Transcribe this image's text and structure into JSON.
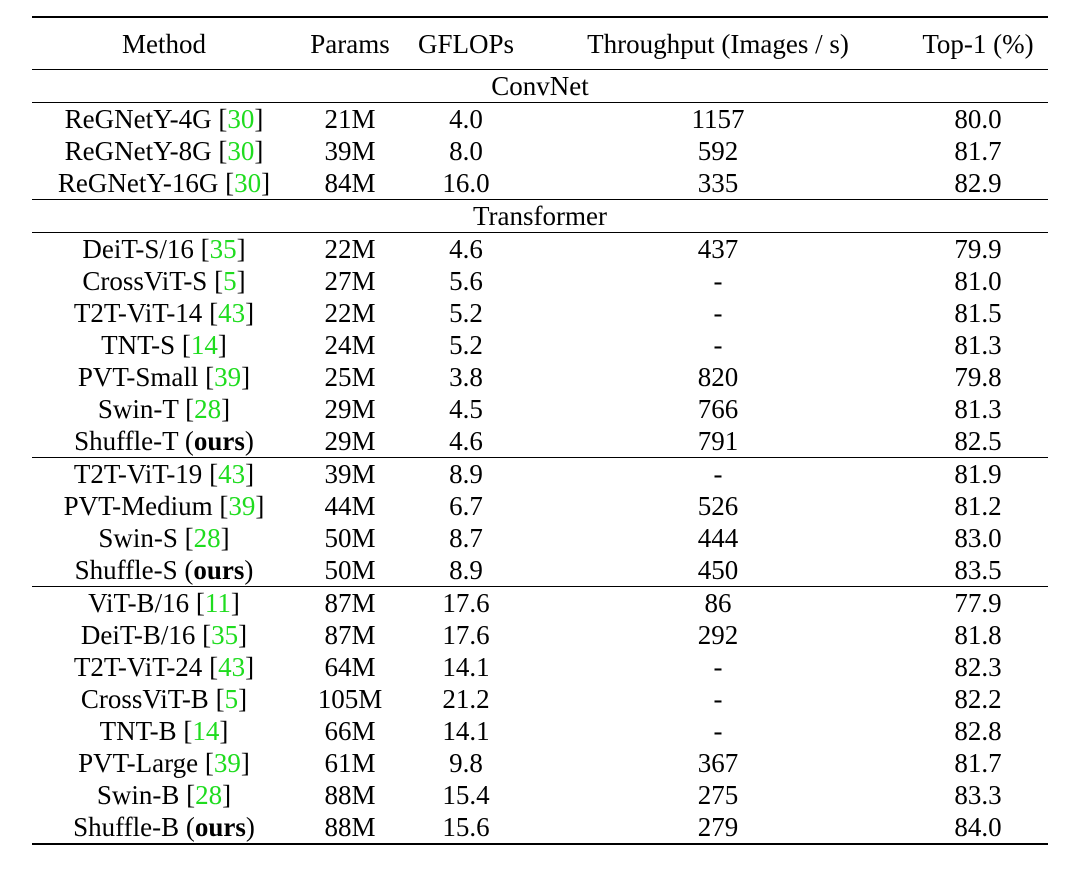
{
  "headers": [
    "Method",
    "Params",
    "GFLOPs",
    "Throughput (Images / s)",
    "Top-1 (%)"
  ],
  "sections": [
    {
      "label": "ConvNet",
      "groups": [
        [
          {
            "method": "ReGNetY-4G",
            "ref": "30",
            "params": "21M",
            "gflops": "4.0",
            "throughput": "1157",
            "top1": "80.0"
          },
          {
            "method": "ReGNetY-8G",
            "ref": "30",
            "params": "39M",
            "gflops": "8.0",
            "throughput": "592",
            "top1": "81.7"
          },
          {
            "method": "ReGNetY-16G",
            "ref": "30",
            "params": "84M",
            "gflops": "16.0",
            "throughput": "335",
            "top1": "82.9"
          }
        ]
      ]
    },
    {
      "label": "Transformer",
      "groups": [
        [
          {
            "method": "DeiT-S/16",
            "ref": "35",
            "params": "22M",
            "gflops": "4.6",
            "throughput": "437",
            "top1": "79.9"
          },
          {
            "method": "CrossViT-S",
            "ref": "5",
            "params": "27M",
            "gflops": "5.6",
            "throughput": "-",
            "top1": "81.0"
          },
          {
            "method": "T2T-ViT-14",
            "ref": "43",
            "params": "22M",
            "gflops": "5.2",
            "throughput": "-",
            "top1": "81.5"
          },
          {
            "method": "TNT-S",
            "ref": "14",
            "params": "24M",
            "gflops": "5.2",
            "throughput": "-",
            "top1": "81.3"
          },
          {
            "method": "PVT-Small",
            "ref": "39",
            "params": "25M",
            "gflops": "3.8",
            "throughput": "820",
            "top1": "79.8"
          },
          {
            "method": "Swin-T",
            "ref": "28",
            "params": "29M",
            "gflops": "4.5",
            "throughput": "766",
            "top1": "81.3"
          },
          {
            "method": "Shuffle-T",
            "ours": "ours",
            "params": "29M",
            "gflops": "4.6",
            "throughput": "791",
            "top1": "82.5",
            "best": true
          }
        ],
        [
          {
            "method": "T2T-ViT-19",
            "ref": "43",
            "params": "39M",
            "gflops": "8.9",
            "throughput": "-",
            "top1": "81.9"
          },
          {
            "method": "PVT-Medium",
            "ref": "39",
            "params": "44M",
            "gflops": "6.7",
            "throughput": "526",
            "top1": "81.2"
          },
          {
            "method": "Swin-S",
            "ref": "28",
            "params": "50M",
            "gflops": "8.7",
            "throughput": "444",
            "top1": "83.0"
          },
          {
            "method": "Shuffle-S",
            "ours": "ours",
            "params": "50M",
            "gflops": "8.9",
            "throughput": "450",
            "top1": "83.5",
            "best": true
          }
        ],
        [
          {
            "method": "ViT-B/16",
            "ref": "11",
            "params": "87M",
            "gflops": "17.6",
            "throughput": "86",
            "top1": "77.9"
          },
          {
            "method": "DeiT-B/16",
            "ref": "35",
            "params": "87M",
            "gflops": "17.6",
            "throughput": "292",
            "top1": "81.8"
          },
          {
            "method": "T2T-ViT-24",
            "ref": "43",
            "params": "64M",
            "gflops": "14.1",
            "throughput": "-",
            "top1": "82.3"
          },
          {
            "method": "CrossViT-B",
            "ref": "5",
            "params": "105M",
            "gflops": "21.2",
            "throughput": "-",
            "top1": "82.2"
          },
          {
            "method": "TNT-B",
            "ref": "14",
            "params": "66M",
            "gflops": "14.1",
            "throughput": "-",
            "top1": "82.8"
          },
          {
            "method": "PVT-Large",
            "ref": "39",
            "params": "61M",
            "gflops": "9.8",
            "throughput": "367",
            "top1": "81.7"
          },
          {
            "method": "Swin-B",
            "ref": "28",
            "params": "88M",
            "gflops": "15.4",
            "throughput": "275",
            "top1": "83.3"
          },
          {
            "method": "Shuffle-B",
            "ours": "ours",
            "params": "88M",
            "gflops": "15.6",
            "throughput": "279",
            "top1": "84.0",
            "best": true
          }
        ]
      ]
    }
  ]
}
